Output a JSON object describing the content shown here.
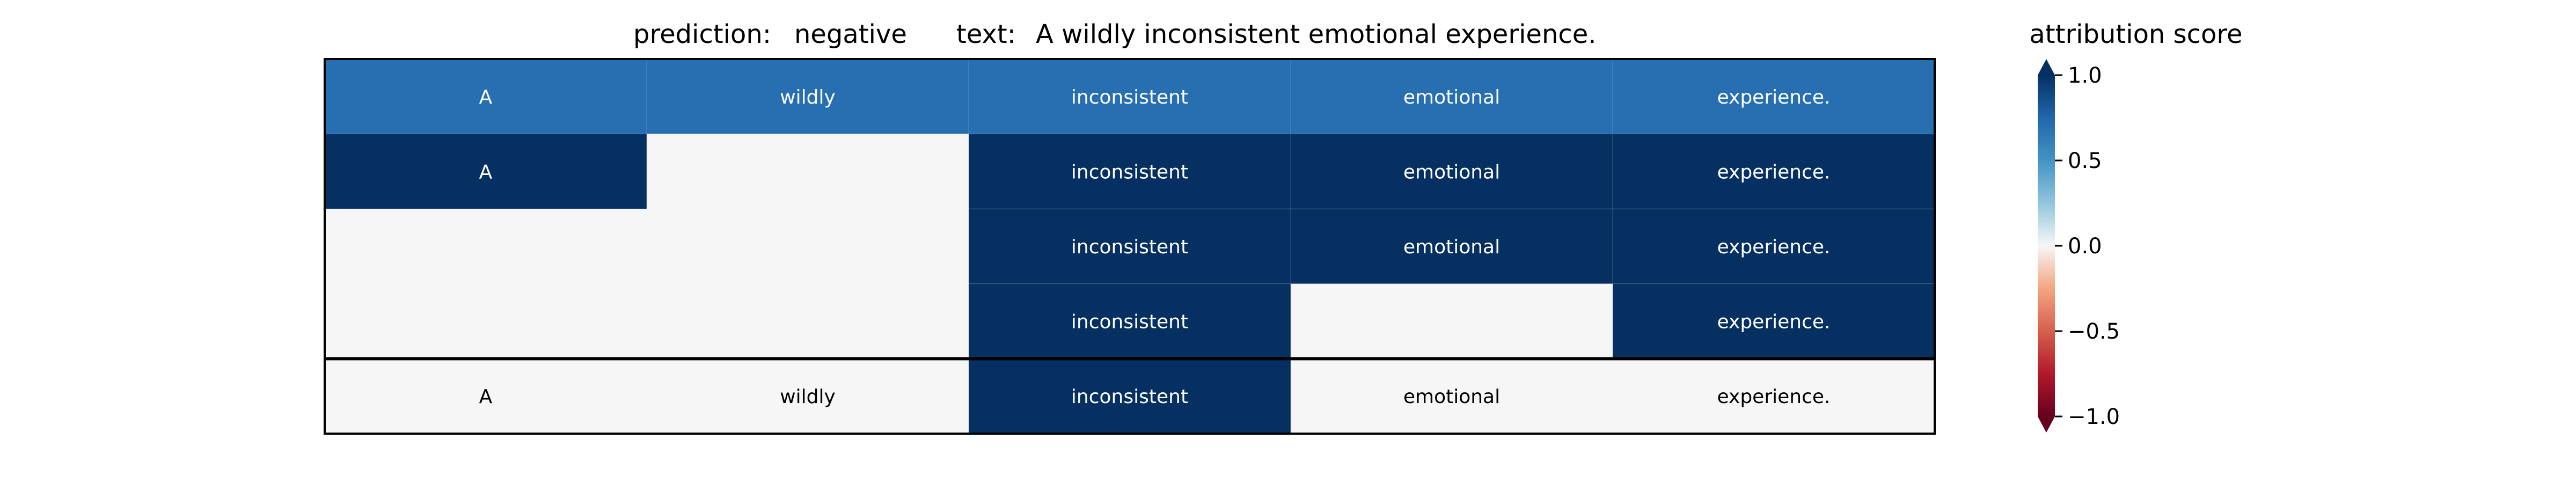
{
  "header": {
    "prediction_label": "prediction:",
    "prediction_value": "negative",
    "text_label": "text:",
    "text_value": "A wildly inconsistent emotional experience."
  },
  "chart_data": {
    "type": "heatmap",
    "tokens": [
      "A",
      "wildly",
      "inconsistent",
      "emotional",
      "experience."
    ],
    "rows": [
      {
        "values": [
          0.7,
          0.7,
          0.7,
          0.7,
          0.7
        ],
        "labels": [
          "A",
          "wildly",
          "inconsistent",
          "emotional",
          "experience."
        ]
      },
      {
        "values": [
          1.0,
          0.0,
          1.0,
          1.0,
          1.0
        ],
        "labels": [
          "A",
          "",
          "inconsistent",
          "emotional",
          "experience."
        ]
      },
      {
        "values": [
          0.0,
          0.0,
          1.0,
          1.0,
          1.0
        ],
        "labels": [
          "",
          "",
          "inconsistent",
          "emotional",
          "experience."
        ]
      },
      {
        "values": [
          0.0,
          0.0,
          1.0,
          0.0,
          1.0
        ],
        "labels": [
          "",
          "",
          "inconsistent",
          "",
          "experience."
        ]
      },
      {
        "values": [
          0.0,
          0.0,
          1.0,
          0.0,
          0.0
        ],
        "labels": [
          "A",
          "wildly",
          "inconsistent",
          "emotional",
          "experience."
        ]
      }
    ],
    "separator_after_row": 4,
    "colorbar": {
      "title": "attribution score",
      "range": [
        -1.0,
        1.0
      ],
      "ticks": [
        1.0,
        0.5,
        0.0,
        -0.5,
        -1.0
      ],
      "tick_labels": [
        "1.0",
        "0.5",
        "0.0",
        "−0.5",
        "−1.0"
      ],
      "colormap": "RdBu",
      "extend": "both"
    },
    "colors": {
      "max_positive": "#053061",
      "mid_positive": "#2c74b4",
      "neutral": "#f6f6f6"
    }
  }
}
